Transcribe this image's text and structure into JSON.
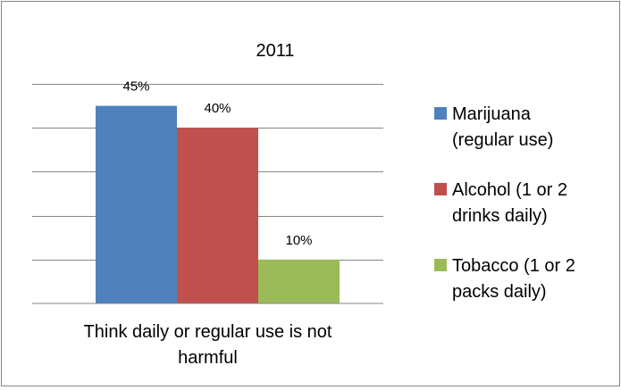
{
  "chart_data": {
    "type": "bar",
    "title": "2011",
    "categories": [
      "Think daily or regular use is not harmful"
    ],
    "category_label_lines": [
      "Think daily or regular use is not",
      "harmful"
    ],
    "series": [
      {
        "name": "Marijuana (regular use)",
        "legend_lines": [
          "Marijuana",
          "(regular use)"
        ],
        "values": [
          45
        ],
        "label": "45%",
        "color": "#4F81BD"
      },
      {
        "name": "Alcohol (1 or 2 drinks daily)",
        "legend_lines": [
          "Alcohol (1 or 2",
          "drinks daily)"
        ],
        "values": [
          40
        ],
        "label": "40%",
        "color": "#C0504D"
      },
      {
        "name": "Tobacco (1 or 2 packs daily)",
        "legend_lines": [
          "Tobacco (1 or 2",
          "packs daily)"
        ],
        "values": [
          10
        ],
        "label": "10%",
        "color": "#9BBB59"
      }
    ],
    "ylim": [
      0,
      50
    ],
    "ytick_step": 10,
    "grid": true,
    "legend_position": "right",
    "xlabel": "",
    "ylabel": ""
  }
}
